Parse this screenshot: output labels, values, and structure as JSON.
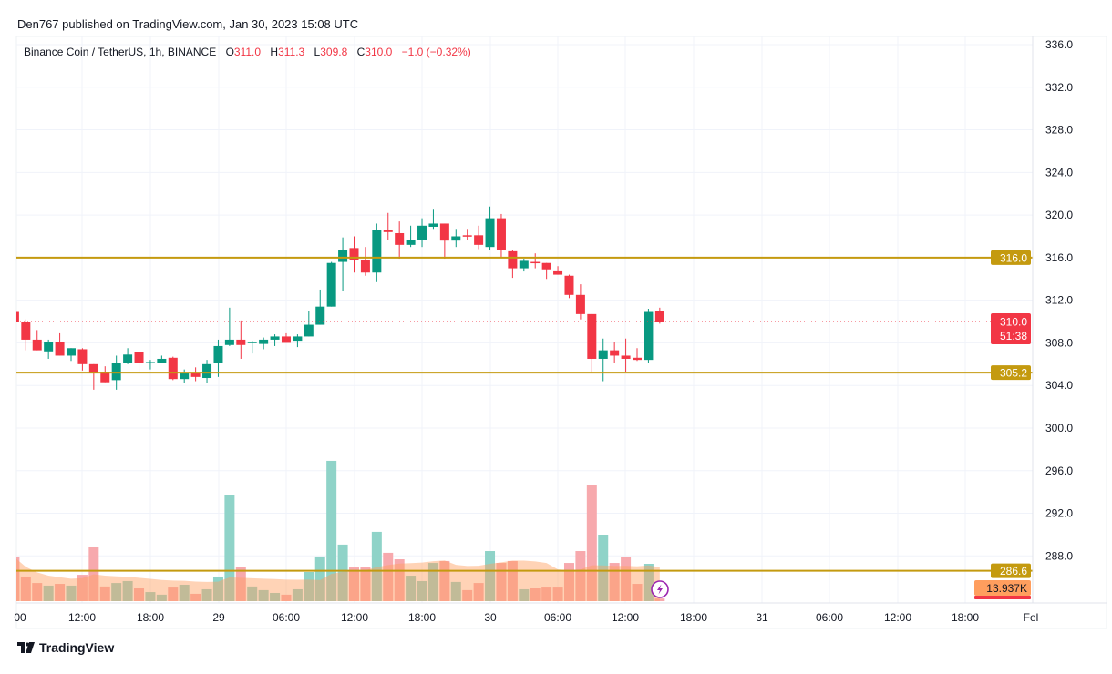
{
  "publish_line": "Den767 published on TradingView.com, Jan 30, 2023 15:08 UTC",
  "legend": {
    "symbol": "Binance Coin / TetherUS, 1h, BINANCE",
    "o_label": "O",
    "o": "311.0",
    "h_label": "H",
    "h": "311.3",
    "l_label": "L",
    "l": "309.8",
    "c_label": "C",
    "c": "310.0",
    "change": "−1.0 (−0.32%)"
  },
  "colors": {
    "up": "#089981",
    "down": "#f23645",
    "level": "#c49a0f",
    "vol_up": "#8fd3c8",
    "vol_down": "#f7a9ad",
    "ma": "#ff9e5e"
  },
  "price_axis": {
    "ticks": [
      "336.0",
      "332.0",
      "328.0",
      "324.0",
      "320.0",
      "316.0",
      "312.0",
      "308.0",
      "304.0",
      "300.0",
      "296.0",
      "292.0",
      "288.0"
    ]
  },
  "time_axis": {
    "ticks": [
      "00",
      "12:00",
      "18:00",
      "29",
      "06:00",
      "12:00",
      "18:00",
      "30",
      "06:00",
      "12:00",
      "18:00",
      "31",
      "06:00",
      "12:00",
      "18:00",
      "Fel"
    ]
  },
  "levels": [
    {
      "price": 316.0,
      "label": "316.0"
    },
    {
      "price": 305.2,
      "label": "305.2"
    },
    {
      "price": 286.6,
      "label": "286.6"
    }
  ],
  "last_price": {
    "price": 310.0,
    "label": "310.0",
    "countdown": "51:38"
  },
  "volume_ma_label": "13.937K",
  "candles": [
    [
      310.9,
      311.0,
      309.8,
      310.0
    ],
    [
      310.0,
      310.2,
      307.3,
      308.3
    ],
    [
      308.3,
      309.2,
      307.3,
      307.3
    ],
    [
      307.2,
      308.3,
      306.5,
      308.1
    ],
    [
      308.1,
      308.9,
      306.8,
      306.8
    ],
    [
      306.8,
      307.5,
      306.3,
      307.5
    ],
    [
      307.4,
      307.5,
      305.4,
      306.0
    ],
    [
      306.0,
      306.0,
      303.6,
      305.2
    ],
    [
      305.3,
      305.8,
      304.3,
      304.3
    ],
    [
      304.5,
      306.8,
      303.6,
      306.1
    ],
    [
      306.1,
      307.5,
      306.0,
      306.9
    ],
    [
      307.1,
      307.2,
      305.3,
      306.1
    ],
    [
      306.1,
      306.4,
      305.5,
      306.2
    ],
    [
      306.1,
      306.8,
      306.1,
      306.5
    ],
    [
      306.6,
      306.7,
      304.5,
      304.6
    ],
    [
      304.6,
      305.5,
      304.2,
      305.2
    ],
    [
      305.2,
      305.7,
      304.4,
      304.8
    ],
    [
      304.7,
      306.4,
      304.2,
      306.0
    ],
    [
      306.1,
      308.3,
      304.8,
      307.7
    ],
    [
      307.8,
      311.3,
      307.7,
      308.3
    ],
    [
      308.3,
      310.1,
      306.5,
      307.8
    ],
    [
      308.0,
      308.2,
      307.0,
      308.1
    ],
    [
      307.9,
      308.5,
      307.4,
      308.3
    ],
    [
      308.3,
      308.8,
      307.7,
      308.6
    ],
    [
      308.6,
      308.9,
      308.0,
      308.0
    ],
    [
      308.2,
      308.8,
      307.6,
      308.6
    ],
    [
      308.6,
      311.0,
      308.6,
      309.7
    ],
    [
      309.7,
      313.0,
      309.7,
      311.4
    ],
    [
      311.4,
      315.6,
      311.4,
      315.5
    ],
    [
      315.6,
      317.9,
      312.9,
      316.7
    ],
    [
      316.9,
      318.0,
      314.6,
      315.8
    ],
    [
      315.8,
      317.0,
      314.3,
      314.6
    ],
    [
      314.6,
      319.2,
      313.7,
      318.6
    ],
    [
      318.6,
      320.2,
      317.7,
      318.4
    ],
    [
      318.3,
      319.4,
      315.9,
      317.2
    ],
    [
      317.2,
      319.0,
      317.0,
      317.7
    ],
    [
      317.7,
      319.7,
      317.0,
      319.0
    ],
    [
      318.9,
      320.5,
      318.7,
      319.2
    ],
    [
      319.2,
      319.2,
      315.9,
      317.6
    ],
    [
      317.6,
      318.7,
      317.0,
      318.0
    ],
    [
      318.1,
      318.7,
      317.7,
      318.0
    ],
    [
      318.1,
      319.0,
      316.8,
      317.2
    ],
    [
      317.0,
      320.8,
      316.7,
      319.7
    ],
    [
      319.7,
      320.1,
      316.0,
      316.7
    ],
    [
      316.6,
      316.7,
      314.1,
      315.0
    ],
    [
      315.0,
      315.9,
      314.7,
      315.7
    ],
    [
      315.6,
      316.4,
      315.0,
      315.5
    ],
    [
      315.5,
      315.5,
      314.0,
      314.9
    ],
    [
      314.8,
      315.2,
      314.4,
      314.4
    ],
    [
      314.3,
      314.4,
      312.2,
      312.5
    ],
    [
      312.5,
      313.5,
      310.2,
      310.7
    ],
    [
      310.7,
      310.7,
      305.2,
      306.5
    ],
    [
      306.5,
      308.4,
      304.4,
      307.3
    ],
    [
      307.3,
      308.1,
      306.1,
      306.8
    ],
    [
      306.8,
      308.4,
      305.3,
      306.5
    ],
    [
      306.6,
      307.5,
      306.3,
      306.4
    ],
    [
      306.4,
      311.2,
      306.1,
      310.9
    ],
    [
      311.0,
      311.3,
      309.8,
      310.0
    ]
  ],
  "volumes_k": [
    20.3,
    11.4,
    8.4,
    7.2,
    8.0,
    7.2,
    12.2,
    24.9,
    6.8,
    8.4,
    9.3,
    5.9,
    4.2,
    3.0,
    6.3,
    7.6,
    3.4,
    5.5,
    11.4,
    49.0,
    16.0,
    6.8,
    5.1,
    3.8,
    3.0,
    5.5,
    13.5,
    20.7,
    65.0,
    26.2,
    15.6,
    15.6,
    32.1,
    22.4,
    19.4,
    11.8,
    9.3,
    17.7,
    18.6,
    8.9,
    5.1,
    8.4,
    23.2,
    17.7,
    18.6,
    5.5,
    5.9,
    6.3,
    6.3,
    17.7,
    23.2,
    54.0,
    30.8,
    17.7,
    20.3,
    8.0,
    17.3,
    1.2
  ],
  "footer_brand": "TradingView",
  "icons": {
    "alert": "lightning-icon",
    "logo": "tradingview-logo-icon"
  }
}
